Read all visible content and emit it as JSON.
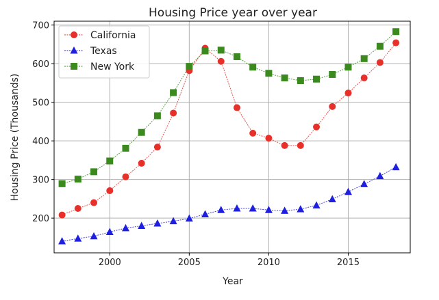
{
  "chart_data": {
    "type": "line",
    "title": "Housing Price year over year",
    "xlabel": "Year",
    "ylabel": "Housing Price (Thousands)",
    "xlim": [
      1996.5,
      2018.9
    ],
    "ylim": [
      110,
      710
    ],
    "xticks": [
      2000,
      2005,
      2010,
      2015
    ],
    "yticks": [
      200,
      300,
      400,
      500,
      600,
      700
    ],
    "grid": true,
    "legend_position": "top-left",
    "x": [
      1997,
      1998,
      1999,
      2000,
      2001,
      2002,
      2003,
      2004,
      2005,
      2006,
      2007,
      2008,
      2009,
      2010,
      2011,
      2012,
      2013,
      2014,
      2015,
      2016,
      2017,
      2018
    ],
    "series": [
      {
        "name": "California",
        "color": "#e8302a",
        "marker": "circle",
        "values": [
          208,
          225,
          240,
          271,
          307,
          342,
          384,
          472,
          582,
          640,
          606,
          486,
          420,
          407,
          388,
          388,
          436,
          489,
          524,
          563,
          603,
          654
        ]
      },
      {
        "name": "Texas",
        "color": "#1f1fe0",
        "marker": "triangle",
        "values": [
          140,
          147,
          153,
          164,
          174,
          180,
          186,
          192,
          199,
          210,
          221,
          225,
          225,
          221,
          219,
          223,
          233,
          249,
          268,
          288,
          309,
          332
        ]
      },
      {
        "name": "New York",
        "color": "#3a8a1e",
        "marker": "square",
        "values": [
          289,
          301,
          320,
          348,
          381,
          422,
          465,
          525,
          593,
          633,
          635,
          618,
          591,
          575,
          563,
          556,
          560,
          572,
          591,
          613,
          645,
          683
        ]
      }
    ]
  }
}
